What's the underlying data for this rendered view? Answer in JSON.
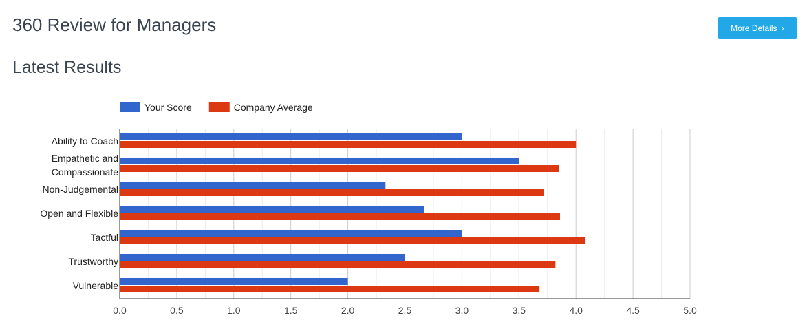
{
  "header": {
    "title": "360 Review for Managers",
    "more_details_label": "More Details",
    "more_details_icon": "chevron-right-icon"
  },
  "section": {
    "title": "Latest Results"
  },
  "colors": {
    "your_score": "#3366cc",
    "company_average": "#dc3912",
    "button": "#22a8e6",
    "grid": "#cccccc"
  },
  "chart_data": {
    "type": "bar",
    "orientation": "horizontal",
    "categories": [
      [
        "Ability to Coach"
      ],
      [
        "Empathetic and",
        "Compassionate"
      ],
      [
        "Non-Judgemental"
      ],
      [
        "Open and Flexible"
      ],
      [
        "Tactful"
      ],
      [
        "Trustworthy"
      ],
      [
        "Vulnerable"
      ]
    ],
    "series": [
      {
        "name": "Your Score",
        "color": "#3366cc",
        "values": [
          3.0,
          3.5,
          2.33,
          2.67,
          3.0,
          2.5,
          2.0
        ]
      },
      {
        "name": "Company Average",
        "color": "#dc3912",
        "values": [
          4.0,
          3.85,
          3.72,
          3.86,
          4.08,
          3.82,
          3.68
        ]
      }
    ],
    "xlim": [
      0,
      5
    ],
    "xticks": [
      "0.0",
      "0.5",
      "1.0",
      "1.5",
      "2.0",
      "2.5",
      "3.0",
      "3.5",
      "4.0",
      "4.5",
      "5.0"
    ],
    "minor_gridlines": true,
    "legend_position": "top-left"
  }
}
